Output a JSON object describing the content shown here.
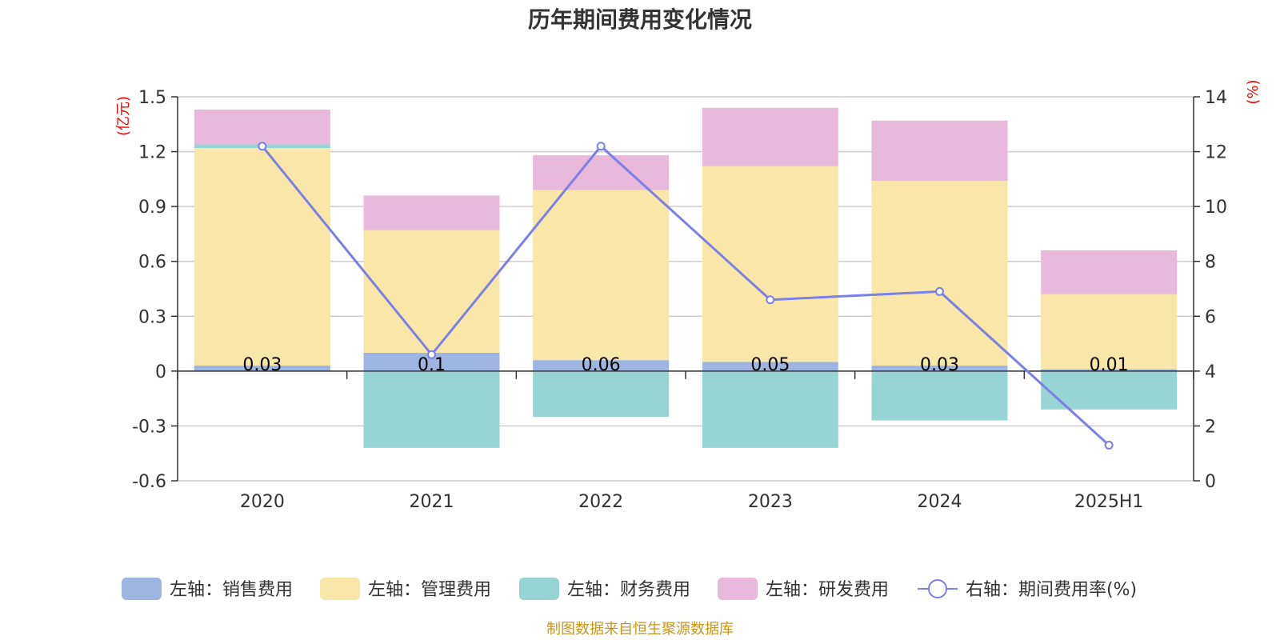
{
  "chart_data": {
    "type": "bar",
    "title": "历年期间费用变化情况",
    "categories": [
      "2020",
      "2021",
      "2022",
      "2023",
      "2024",
      "2025H1"
    ],
    "left_axis": {
      "unit": "(亿元)",
      "ylim": [
        -0.6,
        1.5
      ],
      "ticks": [
        "1.5",
        "1.2",
        "0.9",
        "0.6",
        "0.3",
        "0",
        "-0.3",
        "-0.6"
      ]
    },
    "right_axis": {
      "unit": "(%)",
      "ylim": [
        0,
        14
      ],
      "ticks": [
        "14",
        "12",
        "10",
        "8",
        "6",
        "4",
        "2",
        "0"
      ]
    },
    "series": [
      {
        "name": "左轴：销售费用",
        "axis": "left",
        "kind": "bar",
        "color": "#9db5e0",
        "values": [
          0.03,
          0.1,
          0.06,
          0.05,
          0.03,
          0.01
        ],
        "labels": [
          "0.03",
          "0.1",
          "0.06",
          "0.05",
          "0.03",
          "0.01"
        ]
      },
      {
        "name": "左轴：管理费用",
        "axis": "left",
        "kind": "bar",
        "color": "#f8e7a8",
        "values": [
          1.19,
          0.67,
          0.93,
          1.07,
          1.01,
          0.41
        ]
      },
      {
        "name": "左轴：财务费用",
        "axis": "left",
        "kind": "bar",
        "color": "#97d4d4",
        "values": [
          0.02,
          -0.42,
          -0.25,
          -0.42,
          -0.27,
          -0.21
        ]
      },
      {
        "name": "左轴：研发费用",
        "axis": "left",
        "kind": "bar",
        "color": "#e8b9da",
        "values": [
          0.19,
          0.19,
          0.19,
          0.32,
          0.33,
          0.24
        ]
      },
      {
        "name": "右轴：期间费用率(%)",
        "axis": "right",
        "kind": "line",
        "color": "#7b7fe8",
        "values": [
          12.2,
          4.6,
          12.2,
          6.6,
          6.9,
          1.3
        ]
      }
    ],
    "grid": true,
    "legend_position": "bottom"
  },
  "footer": {
    "source": "制图数据来自恒生聚源数据库"
  }
}
